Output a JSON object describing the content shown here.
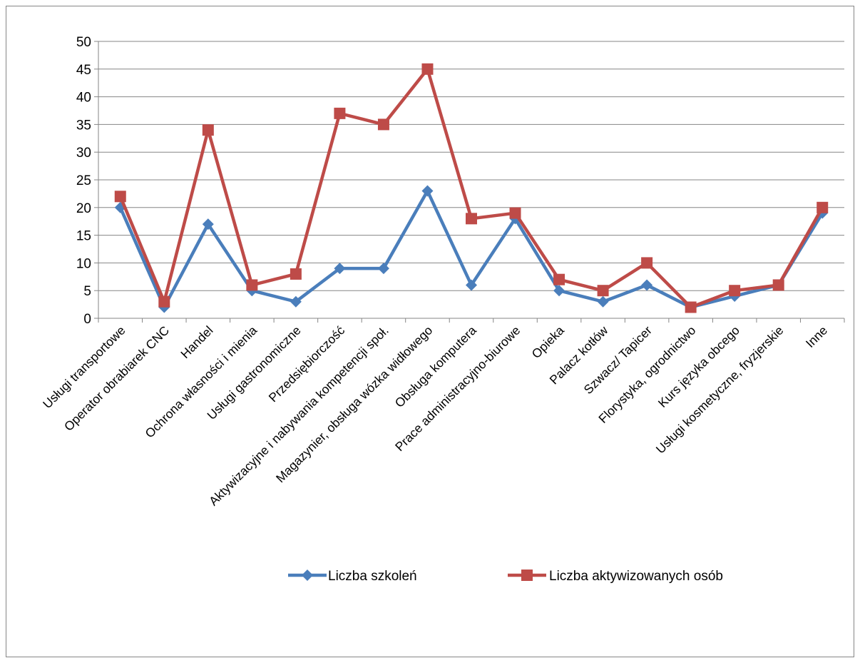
{
  "chart_data": {
    "type": "line",
    "title": "",
    "xlabel": "",
    "ylabel": "",
    "ylim": [
      0,
      50
    ],
    "yticks": [
      0,
      5,
      10,
      15,
      20,
      25,
      30,
      35,
      40,
      45,
      50
    ],
    "grid": "horizontal",
    "legend_position": "bottom",
    "categories": [
      "Usługi transportowe",
      "Operator obrabiarek CNC",
      "Handel",
      "Ochrona własności i mienia",
      "Usługi gastronomiczne",
      "Przedsiębiorczość",
      "Aktywizacyjne i nabywania kompetencji społ.",
      "Magazynier, obsługa wózka widłowego",
      "Obsługa komputera",
      "Prace administracyjno-biurowe",
      "Opieka",
      "Palacz kotłów",
      "Szwacz/ Tapicer",
      "Florystyka, ogrodnictwo",
      "Kurs języka obcego",
      "Usługi kosmetyczne, fryzjerskie",
      "Inne"
    ],
    "series": [
      {
        "name": "Liczba szkoleń",
        "color": "#4a7ebb",
        "marker": "diamond",
        "values": [
          20,
          2,
          17,
          5,
          3,
          9,
          9,
          23,
          6,
          18,
          5,
          3,
          6,
          2,
          4,
          6,
          19
        ]
      },
      {
        "name": "Liczba aktywizowanych osób",
        "color": "#be4b48",
        "marker": "square",
        "values": [
          22,
          3,
          34,
          6,
          8,
          37,
          35,
          45,
          18,
          19,
          7,
          5,
          10,
          2,
          5,
          6,
          20
        ]
      }
    ]
  }
}
